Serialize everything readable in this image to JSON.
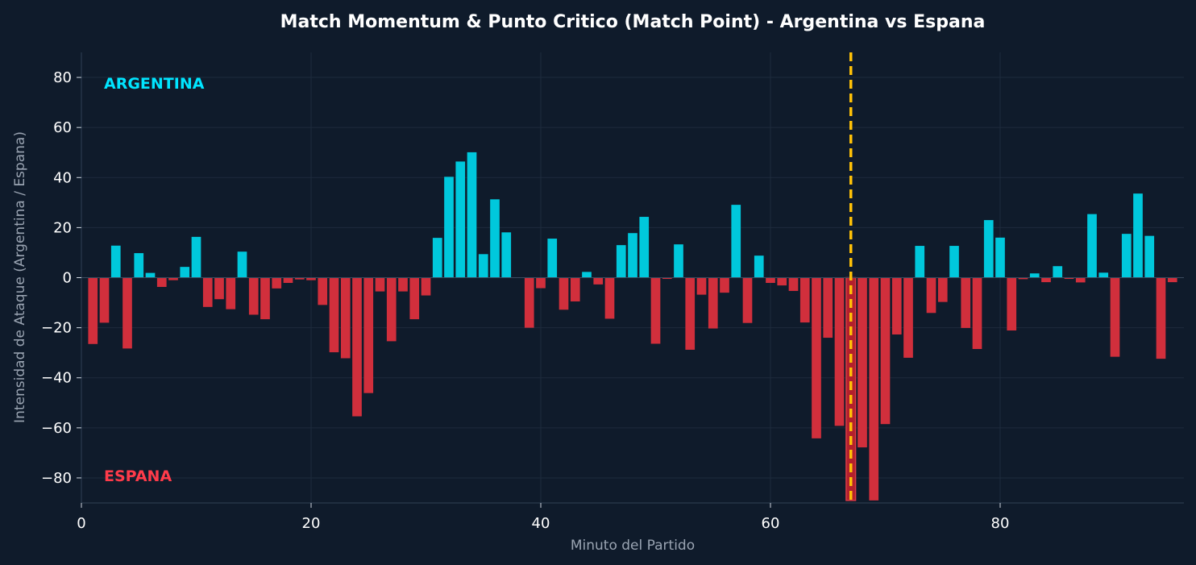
{
  "chart_data": {
    "type": "bar",
    "title": "Match Momentum & Punto Critico (Match Point) - Argentina vs Espana",
    "xlabel": "Minuto del Partido",
    "ylabel": "Intensidad de Ataque (Argentina / Espana)",
    "xlim": [
      0,
      96
    ],
    "ylim": [
      -90,
      90
    ],
    "x_ticks": [
      0,
      20,
      40,
      60,
      80
    ],
    "y_ticks": [
      -80,
      -60,
      -40,
      -20,
      0,
      20,
      40,
      60,
      80
    ],
    "grid": true,
    "annotations": [
      {
        "text": "ARGENTINA",
        "position": "top-left",
        "color": "#00e5ff"
      },
      {
        "text": "ESPANA",
        "position": "bottom-left",
        "color": "#ff3b4a"
      }
    ],
    "critical_minute": 67,
    "colors": {
      "background": "#0f1b2b",
      "argentina": "#00c8dc",
      "espana": "#d12f3c",
      "critical_line": "#ffc107",
      "grid": "#1e2b3c"
    },
    "x": [
      1,
      2,
      3,
      4,
      5,
      6,
      7,
      8,
      9,
      10,
      11,
      12,
      13,
      14,
      15,
      16,
      17,
      18,
      19,
      20,
      21,
      22,
      23,
      24,
      25,
      26,
      27,
      28,
      29,
      30,
      31,
      32,
      33,
      34,
      35,
      36,
      37,
      38,
      39,
      40,
      41,
      42,
      43,
      44,
      45,
      46,
      47,
      48,
      49,
      50,
      51,
      52,
      53,
      54,
      55,
      56,
      57,
      58,
      59,
      60,
      61,
      62,
      63,
      64,
      65,
      66,
      67,
      68,
      69,
      70,
      71,
      72,
      73,
      74,
      75,
      76,
      77,
      78,
      79,
      80,
      81,
      82,
      83,
      84,
      85,
      86,
      87,
      88,
      89,
      90,
      91,
      92,
      93,
      94,
      95
    ],
    "values": [
      -26.5,
      -18,
      12.8,
      -28.3,
      9.8,
      1.9,
      -3.7,
      -1,
      4.3,
      16.3,
      -11.7,
      -8.6,
      -12.6,
      10.4,
      -14.8,
      -16.6,
      -4.3,
      -2.1,
      -0.7,
      -1,
      -10.9,
      -29.8,
      -32.2,
      -55.4,
      -46.1,
      -5.5,
      -25.4,
      -5.5,
      -16.6,
      -7.1,
      15.9,
      40.3,
      46.4,
      50.1,
      9.4,
      31.3,
      18.1,
      0,
      -20,
      -4.2,
      15.6,
      -12.8,
      -9.5,
      2.3,
      -2.7,
      -16.4,
      13,
      17.8,
      24.3,
      -26.4,
      -0.5,
      13.3,
      -28.8,
      -6.8,
      -20.3,
      -6,
      29.1,
      -18.1,
      8.8,
      -2.1,
      -3.1,
      -5.3,
      -17.9,
      -64.2,
      -24,
      -59.2,
      -89,
      -67.8,
      -89,
      -58.5,
      -22.7,
      -32,
      12.7,
      -14.1,
      -9.7,
      12.7,
      -20.1,
      -28.5,
      23,
      16,
      -21.1,
      -0.6,
      1.7,
      -1.8,
      4.6,
      -0.5,
      -1.9,
      25.4,
      2,
      -31.6,
      17.5,
      33.6,
      16.7,
      -32.4,
      -1.8
    ]
  }
}
